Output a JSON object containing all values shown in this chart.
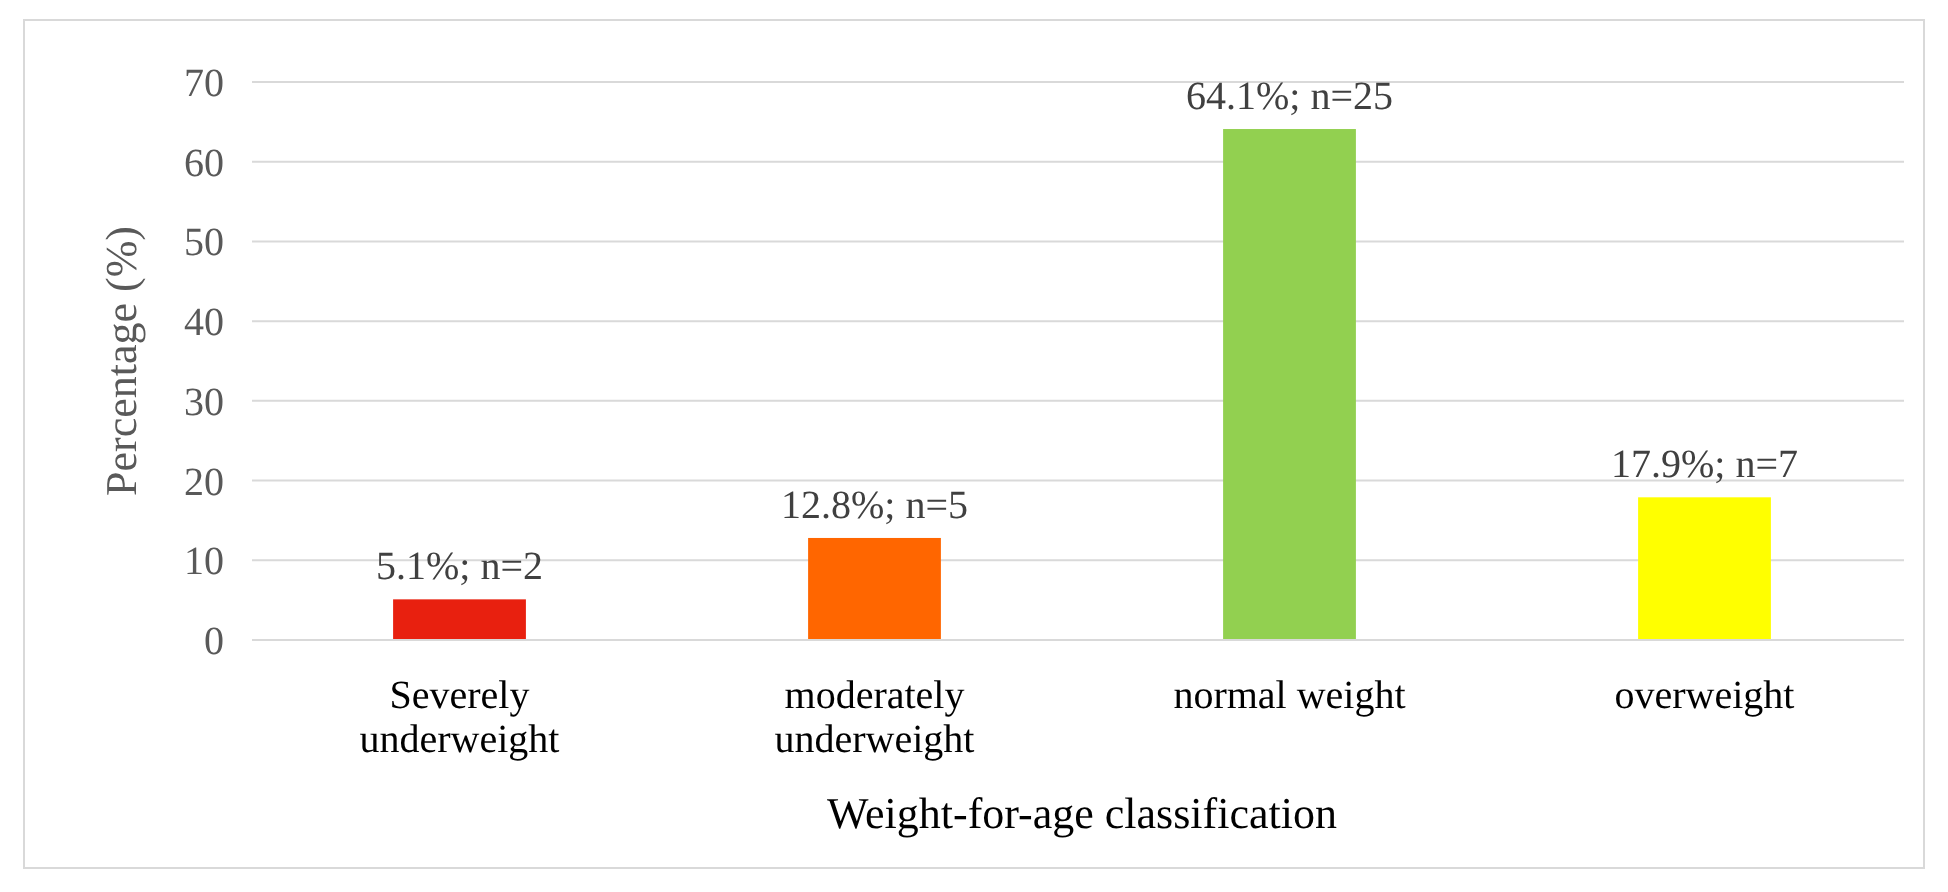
{
  "chart_data": {
    "type": "bar",
    "xlabel": "Weight-for-age classification",
    "ylabel": "Percentage (%)",
    "categories": [
      "Severely underweight",
      "moderately underweight",
      "normal weight",
      "overweight"
    ],
    "values": [
      5.1,
      12.8,
      64.1,
      17.9
    ],
    "colors": [
      "#e8200f",
      "#ff6600",
      "#92d050",
      "#ffff00"
    ],
    "value_labels": [
      "5.1%; n=2",
      "12.8%; n=5",
      "64.1%; n=25",
      "17.9%; n=7"
    ],
    "ylim": [
      0,
      70
    ],
    "yticks": [
      0,
      10,
      20,
      30,
      40,
      50,
      60,
      70
    ],
    "grid": "y"
  }
}
